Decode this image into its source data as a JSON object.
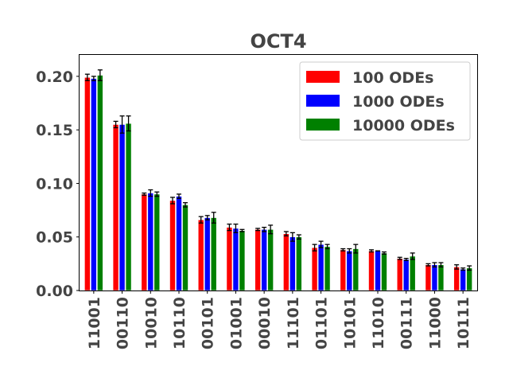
{
  "chart_data": {
    "type": "bar",
    "title": "OCT4",
    "xlabel": "",
    "ylabel": "",
    "ylim": [
      0,
      0.22
    ],
    "yticks": [
      "0.00",
      "0.05",
      "0.10",
      "0.15",
      "0.20"
    ],
    "ytick_values": [
      0,
      0.05,
      0.1,
      0.15,
      0.2
    ],
    "grid": false,
    "legend_position": "top-right",
    "categories": [
      "11001",
      "00110",
      "10010",
      "10110",
      "00101",
      "01001",
      "00010",
      "11101",
      "01101",
      "10101",
      "11010",
      "00111",
      "11000",
      "10111"
    ],
    "series": [
      {
        "name": "100 ODEs",
        "color": "#ff0000",
        "values": [
          0.199,
          0.155,
          0.09,
          0.084,
          0.066,
          0.059,
          0.057,
          0.053,
          0.04,
          0.038,
          0.037,
          0.03,
          0.024,
          0.022
        ],
        "errors": [
          0.003,
          0.003,
          0.001,
          0.003,
          0.003,
          0.003,
          0.001,
          0.002,
          0.003,
          0.001,
          0.001,
          0.001,
          0.001,
          0.002
        ]
      },
      {
        "name": "1000 ODEs",
        "color": "#0000ff",
        "values": [
          0.198,
          0.155,
          0.091,
          0.088,
          0.068,
          0.058,
          0.057,
          0.05,
          0.043,
          0.037,
          0.037,
          0.029,
          0.024,
          0.02
        ],
        "errors": [
          0.002,
          0.008,
          0.003,
          0.002,
          0.002,
          0.004,
          0.002,
          0.004,
          0.003,
          0.002,
          0.0,
          0.001,
          0.002,
          0.001
        ]
      },
      {
        "name": "10000 ODEs",
        "color": "#008000",
        "values": [
          0.201,
          0.156,
          0.09,
          0.08,
          0.068,
          0.056,
          0.057,
          0.05,
          0.041,
          0.039,
          0.035,
          0.032,
          0.024,
          0.021
        ],
        "errors": [
          0.005,
          0.007,
          0.002,
          0.002,
          0.005,
          0.001,
          0.004,
          0.002,
          0.002,
          0.004,
          0.001,
          0.003,
          0.002,
          0.002
        ]
      }
    ]
  }
}
